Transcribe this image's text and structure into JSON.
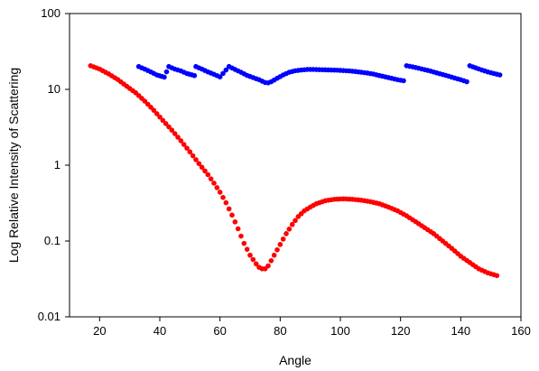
{
  "chart_data": {
    "type": "scatter",
    "title": "",
    "xlabel": "Angle",
    "ylabel": "Log Relative Intensity of Scattering",
    "xlim": [
      10,
      160
    ],
    "ylim": [
      0.01,
      100
    ],
    "yscale": "log",
    "grid": false,
    "legend": "none",
    "x_ticks": [
      20,
      40,
      60,
      80,
      100,
      120,
      140,
      160
    ],
    "y_ticks": [
      0.01,
      0.1,
      1,
      10,
      100
    ],
    "x_tick_labels": [
      "20",
      "40",
      "60",
      "80",
      "100",
      "120",
      "140",
      "160"
    ],
    "y_tick_labels": [
      "0.01",
      "0.1",
      "1",
      "10",
      "100"
    ],
    "series": [
      {
        "color": "#ff0000",
        "x": [
          17,
          20,
          23,
          26,
          29,
          32,
          35,
          38,
          41,
          44,
          47,
          50,
          53,
          56,
          58,
          60,
          62,
          64,
          66,
          68,
          70,
          72,
          73,
          74,
          75,
          76,
          77,
          78,
          80,
          82,
          84,
          86,
          88,
          90,
          92,
          95,
          98,
          101,
          104,
          107,
          110,
          113,
          116,
          119,
          122,
          125,
          128,
          131,
          134,
          137,
          140,
          143,
          146,
          149,
          152
        ],
        "y": [
          20.5,
          18.5,
          16,
          13.5,
          11,
          9,
          7,
          5.3,
          3.9,
          2.9,
          2.1,
          1.5,
          1.05,
          0.75,
          0.58,
          0.44,
          0.32,
          0.22,
          0.145,
          0.093,
          0.065,
          0.05,
          0.045,
          0.043,
          0.043,
          0.047,
          0.055,
          0.065,
          0.09,
          0.125,
          0.165,
          0.21,
          0.25,
          0.28,
          0.31,
          0.34,
          0.355,
          0.36,
          0.355,
          0.345,
          0.33,
          0.31,
          0.28,
          0.25,
          0.215,
          0.18,
          0.15,
          0.125,
          0.1,
          0.08,
          0.063,
          0.052,
          0.043,
          0.038,
          0.035
        ]
      },
      {
        "color": "#0000ff",
        "x": [
          33,
          35,
          37,
          39,
          41.5,
          43,
          45,
          47,
          49,
          51.5,
          52,
          54,
          56,
          58,
          60,
          63,
          65,
          67,
          69,
          71,
          73,
          75,
          76,
          77,
          79,
          81,
          83,
          85,
          87,
          89,
          91,
          93,
          95,
          97,
          99,
          101,
          103,
          105,
          107,
          109,
          111,
          113,
          115,
          117,
          119,
          121,
          122,
          124,
          126,
          128,
          130,
          132,
          134,
          136,
          138,
          140,
          142,
          143,
          145,
          147,
          149,
          151,
          153
        ],
        "y": [
          20,
          18.5,
          17,
          15.5,
          14.5,
          20,
          18.5,
          17.5,
          16.2,
          15.2,
          20,
          18.5,
          17,
          15.8,
          14.6,
          20,
          18.3,
          16.8,
          15.3,
          14.3,
          13.4,
          12.3,
          12.2,
          12.6,
          14,
          15.5,
          16.8,
          17.6,
          18,
          18.3,
          18.3,
          18.2,
          18.1,
          18,
          17.9,
          17.7,
          17.5,
          17.2,
          16.8,
          16.4,
          15.9,
          15.2,
          14.6,
          14,
          13.4,
          13,
          20.5,
          19.8,
          19,
          18.2,
          17.4,
          16.5,
          15.7,
          14.9,
          14.1,
          13.4,
          12.6,
          20.5,
          19.2,
          18,
          17,
          16.2,
          15.5
        ]
      }
    ]
  }
}
